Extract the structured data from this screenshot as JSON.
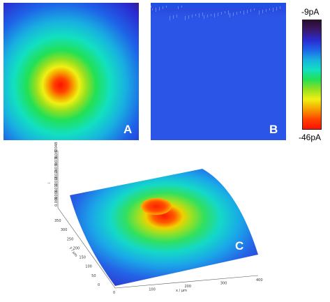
{
  "panels": {
    "a": {
      "letter": "A"
    },
    "b": {
      "letter": "B"
    },
    "c": {
      "letter": "C"
    }
  },
  "colorbar": {
    "max_label": "-9pA",
    "min_label": "-46pA",
    "colors": [
      "#2a0c2a",
      "#3a1a6a",
      "#2b2ad0",
      "#1e63e8",
      "#18b0e0",
      "#12e0c0",
      "#22e055",
      "#96e020",
      "#f0f012",
      "#f5a000",
      "#ff4400",
      "#ff1000"
    ]
  },
  "chart_data": [
    {
      "type": "heatmap",
      "panel": "A",
      "description_values": {
        "min_current_pA": -46,
        "max_current_pA": -9
      },
      "hotspot_center": [
        0.45,
        0.6
      ]
    },
    {
      "type": "heatmap",
      "panel": "B",
      "description_values": {
        "min_current_pA": -46,
        "max_current_pA": -9
      }
    },
    {
      "type": "surface",
      "panel": "C",
      "x_ticks": [
        "0",
        "100",
        "200",
        "300",
        "400"
      ],
      "y_ticks": [
        "0",
        "50",
        "100",
        "150",
        "200",
        "250",
        "300",
        "350"
      ],
      "z_ticks": [
        "0.000",
        "0.006",
        "0.012",
        "0.018",
        "0.024",
        "0.030",
        "0.036",
        "0.042",
        "0.048"
      ],
      "xlabel": "x / μm",
      "ylabel": "y / μm",
      "zlabel": "i"
    }
  ]
}
